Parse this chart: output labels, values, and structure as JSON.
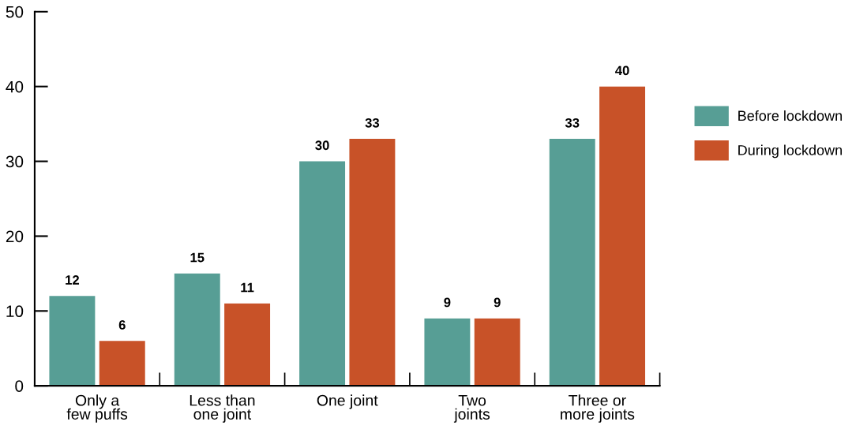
{
  "chart_data": {
    "type": "bar",
    "categories": [
      "Only a\nfew puffs",
      "Less than\none joint",
      "One joint",
      "Two\njoints",
      "Three or\nmore joints"
    ],
    "series": [
      {
        "name": "Before lockdown",
        "color": "#579e95",
        "values": [
          12,
          15,
          30,
          9,
          33
        ]
      },
      {
        "name": "During lockdown",
        "color": "#c85228",
        "values": [
          6,
          11,
          33,
          9,
          40
        ]
      }
    ],
    "ylim": [
      0,
      50
    ],
    "yticks": [
      0,
      10,
      20,
      30,
      40,
      50
    ],
    "grid": false,
    "legend": "right",
    "data_labels": true
  }
}
